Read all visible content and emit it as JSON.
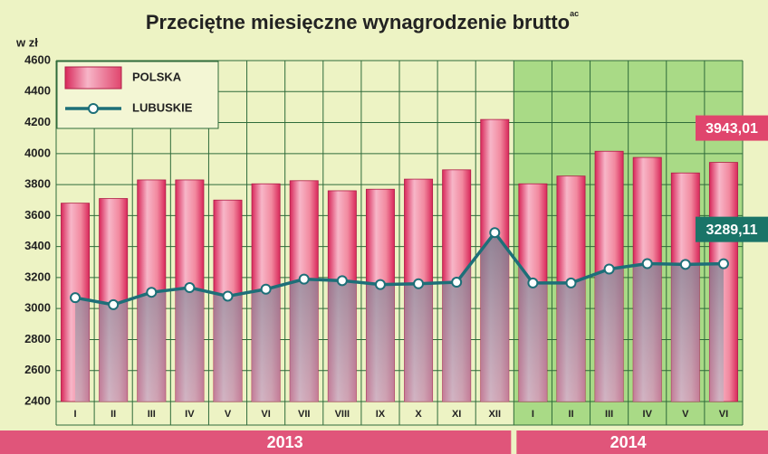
{
  "chart_data": {
    "type": "bar-line",
    "title": "Przeciętne miesięczne wynagrodzenie brutto",
    "title_note": "ac",
    "y_label": "w zł",
    "categories": [
      "I",
      "II",
      "III",
      "IV",
      "V",
      "VI",
      "VII",
      "VIII",
      "IX",
      "X",
      "XI",
      "XII",
      "I",
      "II",
      "III",
      "IV",
      "V",
      "VI"
    ],
    "groups": [
      {
        "label": "2013",
        "count": 12
      },
      {
        "label": "2014",
        "count": 6
      }
    ],
    "series": [
      {
        "name": "POLSKA",
        "kind": "bar",
        "color": "#e8476f",
        "values": [
          3680,
          3710,
          3830,
          3830,
          3700,
          3805,
          3825,
          3760,
          3770,
          3835,
          3895,
          4220,
          3805,
          3855,
          4015,
          3975,
          3875,
          3943.01
        ],
        "value_labels": [
          null,
          null,
          null,
          null,
          null,
          null,
          null,
          null,
          null,
          null,
          null,
          null,
          null,
          null,
          null,
          null,
          null,
          "3943,01"
        ]
      },
      {
        "name": "LUBUSKIE",
        "kind": "line",
        "color": "#1d6f78",
        "values": [
          3070,
          3025,
          3105,
          3135,
          3080,
          3125,
          3190,
          3180,
          3155,
          3160,
          3170,
          3490,
          3165,
          3165,
          3255,
          3290,
          3285,
          3289.11
        ],
        "value_labels": [
          null,
          null,
          null,
          null,
          null,
          null,
          null,
          null,
          null,
          null,
          null,
          null,
          null,
          null,
          null,
          null,
          null,
          "3289,11"
        ]
      }
    ],
    "ylim": [
      2400,
      4600
    ],
    "yticks": [
      2400,
      2600,
      2800,
      3000,
      3200,
      3400,
      3600,
      3800,
      4000,
      4200,
      4400,
      4600
    ],
    "grid": true
  }
}
